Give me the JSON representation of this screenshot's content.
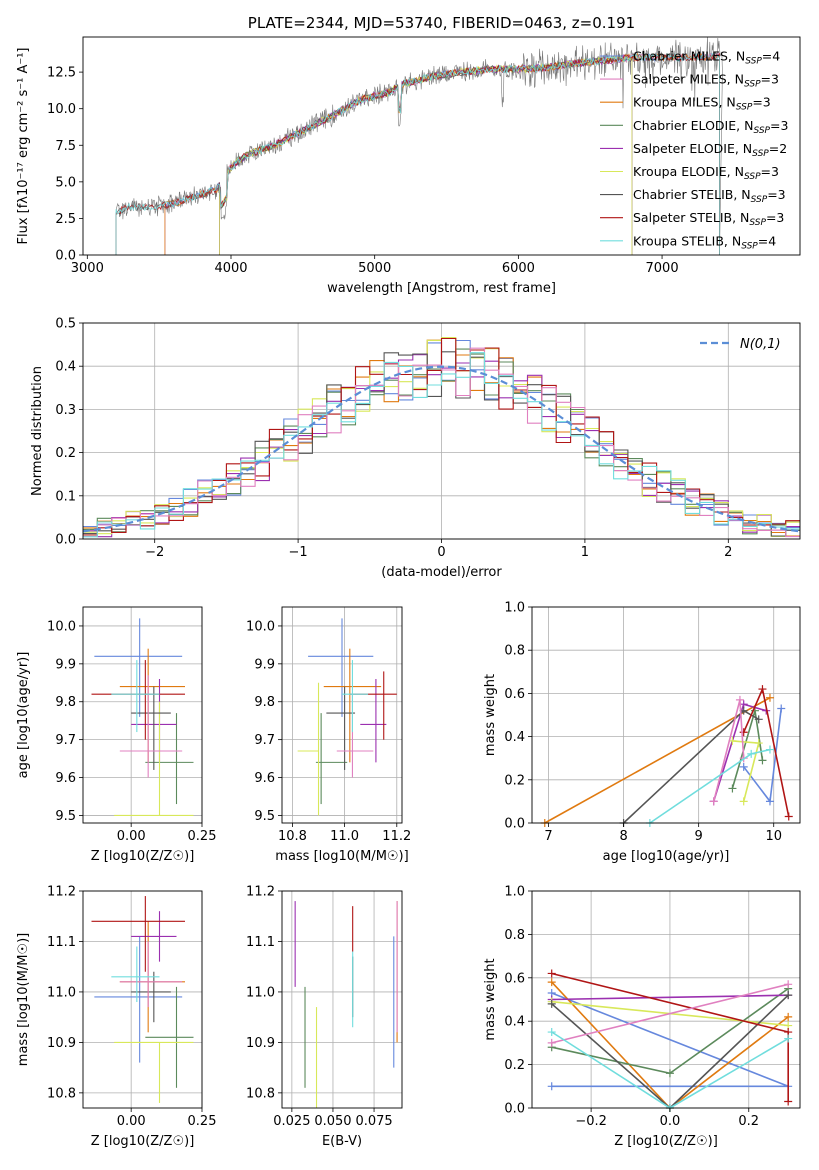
{
  "colors": [
    "#6688dd",
    "#e07a10",
    "#5c8a5c",
    "#9b30b0",
    "#d8e85a",
    "#555555",
    "#b01515",
    "#e080c0",
    "#70dddd"
  ],
  "chart_data": [
    {
      "id": "spectrum",
      "type": "line",
      "title": "PLATE=2344, MJD=53740, FIBERID=0463, z=0.191",
      "xlabel": "wavelength [Angstrom, rest frame]",
      "ylabel": "Flux [fλ10⁻¹⁷ erg cm⁻² s⁻¹ A⁻¹]",
      "xlim": [
        2970,
        7960
      ],
      "ylim": [
        0,
        14.9
      ],
      "xticks": [
        3000,
        4000,
        5000,
        6000,
        7000
      ],
      "yticks": [
        0.0,
        2.5,
        5.0,
        7.5,
        10.0,
        12.5
      ],
      "grid": false,
      "legend_position": "lower-right",
      "series": [
        {
          "name": "Chabrier MILES, N_SSP=4",
          "color_index": 0,
          "x_range": [
            3540,
            7400
          ]
        },
        {
          "name": "Salpeter MILES, N_SSP=3",
          "color_index": 7,
          "x_range": [
            3540,
            7400
          ]
        },
        {
          "name": "Kroupa MILES, N_SSP=3",
          "color_index": 1,
          "x_range": [
            3540,
            7400
          ]
        },
        {
          "name": "Chabrier ELODIE, N_SSP=3",
          "color_index": 2,
          "x_range": [
            3920,
            6790
          ]
        },
        {
          "name": "Salpeter ELODIE, N_SSP=2",
          "color_index": 3,
          "x_range": [
            3920,
            6790
          ]
        },
        {
          "name": "Kroupa ELODIE, N_SSP=3",
          "color_index": 4,
          "x_range": [
            3920,
            6790
          ]
        },
        {
          "name": "Chabrier STELIB, N_SSP=3",
          "color_index": 5,
          "x_range": [
            3200,
            7400
          ]
        },
        {
          "name": "Salpeter STELIB, N_SSP=3",
          "color_index": 6,
          "x_range": [
            3200,
            7400
          ]
        },
        {
          "name": "Kroupa STELIB, N_SSP=4",
          "color_index": 8,
          "x_range": [
            3200,
            7400
          ]
        }
      ],
      "continuum": {
        "x": [
          3200,
          3300,
          3500,
          3700,
          3900,
          4000,
          4100,
          4300,
          4500,
          4700,
          4900,
          5100,
          5200,
          5400,
          5600,
          5800,
          6000,
          6200,
          6400,
          6600,
          6800,
          7000,
          7200,
          7400
        ],
        "y": [
          3.0,
          3.3,
          3.3,
          3.8,
          4.5,
          6.0,
          6.8,
          7.5,
          8.5,
          9.5,
          10.6,
          11.1,
          11.7,
          12.2,
          12.5,
          12.7,
          12.7,
          12.8,
          13.1,
          13.3,
          13.5,
          13.5,
          13.5,
          13.6
        ]
      }
    },
    {
      "id": "residuals",
      "type": "histogram",
      "xlabel": "(data-model)/error",
      "ylabel": "Normed distribution",
      "xlim": [
        -2.5,
        2.5
      ],
      "ylim": [
        0,
        0.5
      ],
      "xticks": [
        -2,
        -1,
        0,
        1,
        2
      ],
      "yticks": [
        0.0,
        0.1,
        0.2,
        0.3,
        0.4,
        0.5
      ],
      "grid": true,
      "bin_edges_start": -2.5,
      "bin_width": 0.1,
      "legend": "N(0,1)",
      "curve": "normal(0,1)"
    },
    {
      "id": "age-vs-Z",
      "type": "errorbar",
      "xlabel": "Z [log10(Z/Z☉)]",
      "ylabel": "age  [log10(age/yr)]",
      "xlim": [
        -0.17,
        0.25
      ],
      "ylim": [
        9.48,
        10.05
      ],
      "xticks": [
        0.0,
        0.25
      ],
      "yticks": [
        9.5,
        9.6,
        9.7,
        9.8,
        9.9,
        10.0
      ],
      "grid": true,
      "points": [
        {
          "color_index": 0,
          "x": 0.03,
          "xerr": [
            0.16,
            0.15
          ],
          "y": 9.92,
          "yerr": [
            0.16,
            0.1
          ]
        },
        {
          "color_index": 1,
          "x": 0.06,
          "xerr": [
            0.1,
            0.13
          ],
          "y": 9.84,
          "yerr": [
            0.2,
            0.1
          ]
        },
        {
          "color_index": 2,
          "x": 0.16,
          "xerr": [
            0.11,
            0.06
          ],
          "y": 9.64,
          "yerr": [
            0.11,
            0.13
          ]
        },
        {
          "color_index": 3,
          "x": 0.1,
          "xerr": [
            0.1,
            0.06
          ],
          "y": 9.74,
          "yerr": [
            0.1,
            0.12
          ]
        },
        {
          "color_index": 4,
          "x": 0.1,
          "xerr": [
            0.16,
            0.12
          ],
          "y": 9.5,
          "yerr": [
            0.0,
            0.3
          ]
        },
        {
          "color_index": 5,
          "x": 0.08,
          "xerr": [
            0.08,
            0.06
          ],
          "y": 9.77,
          "yerr": [
            0.15,
            0.07
          ]
        },
        {
          "color_index": 6,
          "x": 0.05,
          "xerr": [
            0.19,
            0.14
          ],
          "y": 9.82,
          "yerr": [
            0.12,
            0.09
          ]
        },
        {
          "color_index": 7,
          "x": 0.06,
          "xerr": [
            0.1,
            0.12
          ],
          "y": 9.67,
          "yerr": [
            0.07,
            0.2
          ]
        },
        {
          "color_index": 8,
          "x": 0.02,
          "xerr": [
            0.09,
            0.08
          ],
          "y": 9.82,
          "yerr": [
            0.1,
            0.09
          ]
        }
      ]
    },
    {
      "id": "age-vs-mass",
      "type": "errorbar",
      "xlabel": "mass [log10(M/M☉)]",
      "xlim": [
        10.76,
        11.22
      ],
      "ylim": [
        9.48,
        10.05
      ],
      "xticks": [
        10.8,
        11.0,
        11.2
      ],
      "yticks": [
        9.5,
        9.6,
        9.7,
        9.8,
        9.9,
        10.0
      ],
      "grid": true,
      "points": [
        {
          "color_index": 0,
          "x": 10.99,
          "xerr": [
            0.13,
            0.12
          ],
          "y": 9.92,
          "yerr": [
            0.16,
            0.1
          ]
        },
        {
          "color_index": 1,
          "x": 11.02,
          "xerr": [
            0.1,
            0.12
          ],
          "y": 9.84,
          "yerr": [
            0.2,
            0.1
          ]
        },
        {
          "color_index": 2,
          "x": 10.91,
          "xerr": [
            0.02,
            0.1
          ],
          "y": 9.64,
          "yerr": [
            0.11,
            0.13
          ]
        },
        {
          "color_index": 3,
          "x": 11.12,
          "xerr": [
            0.06,
            0.04
          ],
          "y": 9.74,
          "yerr": [
            0.1,
            0.12
          ]
        },
        {
          "color_index": 4,
          "x": 10.9,
          "xerr": [
            0.08,
            0.0
          ],
          "y": 9.67,
          "yerr": [
            0.17,
            0.18
          ]
        },
        {
          "color_index": 5,
          "x": 11.0,
          "xerr": [
            0.07,
            0.04
          ],
          "y": 9.77,
          "yerr": [
            0.15,
            0.07
          ]
        },
        {
          "color_index": 6,
          "x": 11.15,
          "xerr": [
            0.13,
            0.05
          ],
          "y": 9.82,
          "yerr": [
            0.12,
            0.06
          ]
        },
        {
          "color_index": 7,
          "x": 11.03,
          "xerr": [
            0.06,
            0.08
          ],
          "y": 9.67,
          "yerr": [
            0.07,
            0.15
          ]
        },
        {
          "color_index": 8,
          "x": 11.03,
          "xerr": [
            0.04,
            0.06
          ],
          "y": 9.82,
          "yerr": [
            0.1,
            0.09
          ]
        }
      ]
    },
    {
      "id": "weight-vs-age",
      "type": "line",
      "xlabel": "age  [log10(age/yr)]",
      "ylabel": "mass weight",
      "xlim": [
        6.78,
        10.35
      ],
      "ylim": [
        0,
        1.0
      ],
      "xticks": [
        7,
        8,
        9,
        10
      ],
      "yticks": [
        0.0,
        0.2,
        0.4,
        0.6,
        0.8,
        1.0
      ],
      "grid": true,
      "series": [
        {
          "color_index": 0,
          "x": [
            9.6,
            9.95,
            10.1
          ],
          "y": [
            0.26,
            0.1,
            0.53
          ]
        },
        {
          "color_index": 1,
          "x": [
            6.95,
            9.95
          ],
          "y": [
            0.0,
            0.58
          ]
        },
        {
          "color_index": 2,
          "x": [
            9.45,
            9.75,
            9.85
          ],
          "y": [
            0.16,
            0.52,
            0.29
          ]
        },
        {
          "color_index": 3,
          "x": [
            9.2,
            9.6,
            9.9
          ],
          "y": [
            0.1,
            0.55,
            0.52
          ]
        },
        {
          "color_index": 4,
          "x": [
            9.6,
            9.8,
            9.45
          ],
          "y": [
            0.1,
            0.37,
            0.38
          ]
        },
        {
          "color_index": 5,
          "x": [
            8.0,
            9.6,
            9.8
          ],
          "y": [
            0.0,
            0.52,
            0.48
          ]
        },
        {
          "color_index": 6,
          "x": [
            9.6,
            9.85,
            10.2
          ],
          "y": [
            0.42,
            0.62,
            0.03
          ]
        },
        {
          "color_index": 7,
          "x": [
            9.2,
            9.55,
            9.6
          ],
          "y": [
            0.1,
            0.57,
            0.3
          ]
        },
        {
          "color_index": 8,
          "x": [
            8.35,
            9.7,
            9.95
          ],
          "y": [
            0.0,
            0.32,
            0.34
          ]
        }
      ]
    },
    {
      "id": "mass-vs-Z",
      "type": "errorbar",
      "xlabel": "Z [log10(Z/Z☉)]",
      "ylabel": "mass [log10(M/M☉)]",
      "xlim": [
        -0.17,
        0.25
      ],
      "ylim": [
        10.77,
        11.2
      ],
      "xticks": [
        0.0,
        0.25
      ],
      "yticks": [
        10.8,
        10.9,
        11.0,
        11.1,
        11.2
      ],
      "grid": true,
      "points": [
        {
          "color_index": 0,
          "x": 0.03,
          "xerr": [
            0.16,
            0.15
          ],
          "y": 10.99,
          "yerr": [
            0.13,
            0.12
          ]
        },
        {
          "color_index": 1,
          "x": 0.06,
          "xerr": [
            0.1,
            0.13
          ],
          "y": 11.02,
          "yerr": [
            0.1,
            0.12
          ]
        },
        {
          "color_index": 2,
          "x": 0.16,
          "xerr": [
            0.11,
            0.06
          ],
          "y": 10.91,
          "yerr": [
            0.1,
            0.1
          ]
        },
        {
          "color_index": 3,
          "x": 0.1,
          "xerr": [
            0.1,
            0.06
          ],
          "y": 11.11,
          "yerr": [
            0.05,
            0.05
          ]
        },
        {
          "color_index": 4,
          "x": 0.1,
          "xerr": [
            0.16,
            0.12
          ],
          "y": 10.9,
          "yerr": [
            0.12,
            0.0
          ]
        },
        {
          "color_index": 5,
          "x": 0.08,
          "xerr": [
            0.08,
            0.06
          ],
          "y": 11.0,
          "yerr": [
            0.06,
            0.04
          ]
        },
        {
          "color_index": 6,
          "x": 0.05,
          "xerr": [
            0.19,
            0.14
          ],
          "y": 11.14,
          "yerr": [
            0.1,
            0.05
          ]
        },
        {
          "color_index": 7,
          "x": 0.06,
          "xerr": [
            0.1,
            0.12
          ],
          "y": 11.02,
          "yerr": [
            0.05,
            0.08
          ]
        },
        {
          "color_index": 8,
          "x": 0.02,
          "xerr": [
            0.09,
            0.08
          ],
          "y": 11.03,
          "yerr": [
            0.05,
            0.06
          ]
        }
      ]
    },
    {
      "id": "mass-vs-ebv",
      "type": "errorbar",
      "xlabel": "E(B-V)",
      "xlim": [
        0.019,
        0.092
      ],
      "ylim": [
        10.77,
        11.2
      ],
      "xticks": [
        0.025,
        0.05,
        0.075
      ],
      "yticks": [
        10.8,
        10.9,
        11.0,
        11.1,
        11.2
      ],
      "grid": true,
      "points": [
        {
          "color_index": 0,
          "x": 0.087,
          "y": 10.99,
          "yerr": [
            0.14,
            0.12
          ]
        },
        {
          "color_index": 1,
          "x": 0.089,
          "y": 11.02,
          "yerr": [
            0.12,
            0.16
          ]
        },
        {
          "color_index": 2,
          "x": 0.033,
          "y": 10.91,
          "yerr": [
            0.1,
            0.1
          ]
        },
        {
          "color_index": 3,
          "x": 0.027,
          "y": 11.11,
          "yerr": [
            0.1,
            0.07
          ]
        },
        {
          "color_index": 4,
          "x": 0.04,
          "y": 10.9,
          "yerr": [
            0.13,
            0.07
          ]
        },
        {
          "color_index": 5,
          "x": 0.062,
          "y": 11.0,
          "yerr": [
            0.05,
            0.07
          ]
        },
        {
          "color_index": 6,
          "x": 0.062,
          "y": 11.14,
          "yerr": [
            0.06,
            0.03
          ]
        },
        {
          "color_index": 7,
          "x": 0.089,
          "y": 11.02,
          "yerr": [
            0.1,
            0.16
          ]
        },
        {
          "color_index": 8,
          "x": 0.062,
          "y": 11.03,
          "yerr": [
            0.1,
            0.05
          ]
        }
      ]
    },
    {
      "id": "weight-vs-Z",
      "type": "line",
      "xlabel": "Z [log10(Z/Z☉)]",
      "ylabel": "mass weight",
      "xlim": [
        -0.35,
        0.33
      ],
      "ylim": [
        0,
        1.0
      ],
      "xticks": [
        -0.2,
        0.0,
        0.2
      ],
      "yticks": [
        0.0,
        0.2,
        0.4,
        0.6,
        0.8,
        1.0
      ],
      "grid": true,
      "series": [
        {
          "color_index": 0,
          "x": [
            -0.3,
            0.3,
            -0.3
          ],
          "y": [
            0.1,
            0.1,
            0.53
          ]
        },
        {
          "color_index": 1,
          "x": [
            -0.3,
            0.0,
            0.3
          ],
          "y": [
            0.58,
            0.0,
            0.42
          ]
        },
        {
          "color_index": 2,
          "x": [
            -0.3,
            0.0,
            0.3
          ],
          "y": [
            0.28,
            0.16,
            0.55
          ]
        },
        {
          "color_index": 3,
          "x": [
            -0.3,
            0.3
          ],
          "y": [
            0.5,
            0.52
          ]
        },
        {
          "color_index": 4,
          "x": [
            -0.3,
            0.3
          ],
          "y": [
            0.49,
            0.38
          ]
        },
        {
          "color_index": 5,
          "x": [
            -0.3,
            0.0,
            0.3
          ],
          "y": [
            0.48,
            0.0,
            0.52
          ]
        },
        {
          "color_index": 6,
          "x": [
            -0.3,
            0.3,
            0.3
          ],
          "y": [
            0.62,
            0.35,
            0.03
          ]
        },
        {
          "color_index": 7,
          "x": [
            -0.3,
            0.3
          ],
          "y": [
            0.3,
            0.57
          ]
        },
        {
          "color_index": 8,
          "x": [
            -0.3,
            0.0,
            0.3
          ],
          "y": [
            0.35,
            0.0,
            0.32
          ]
        }
      ]
    }
  ]
}
